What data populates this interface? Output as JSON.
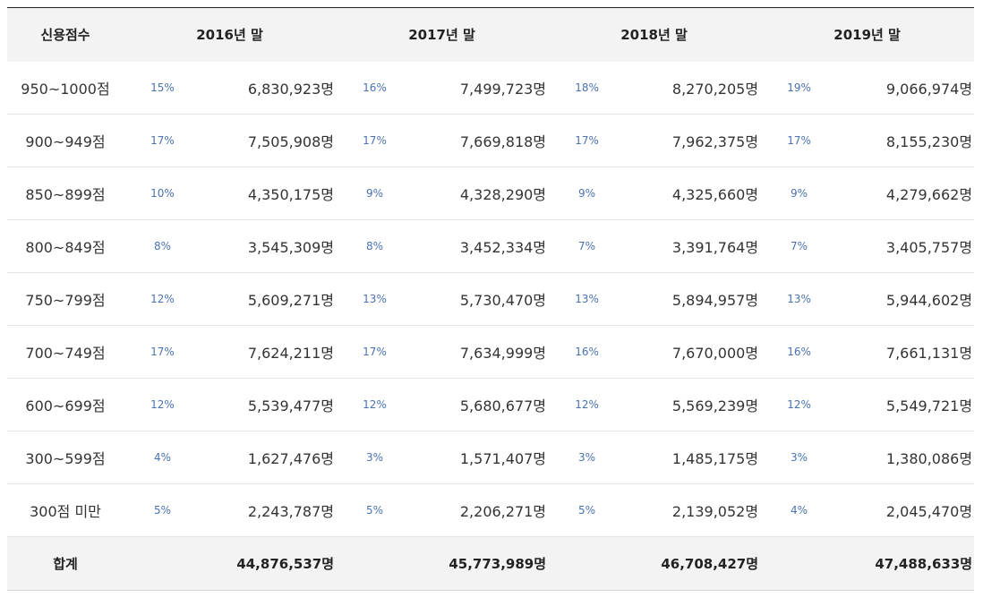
{
  "table": {
    "headers": [
      "신용점수",
      "2016년 말",
      "2017년 말",
      "2018년 말",
      "2019년 말"
    ],
    "rows": [
      {
        "label": "950~1000점",
        "cells": [
          {
            "pct": "15%",
            "count": "6,830,923명"
          },
          {
            "pct": "16%",
            "count": "7,499,723명"
          },
          {
            "pct": "18%",
            "count": "8,270,205명"
          },
          {
            "pct": "19%",
            "count": "9,066,974명"
          }
        ]
      },
      {
        "label": "900~949점",
        "cells": [
          {
            "pct": "17%",
            "count": "7,505,908명"
          },
          {
            "pct": "17%",
            "count": "7,669,818명"
          },
          {
            "pct": "17%",
            "count": "7,962,375명"
          },
          {
            "pct": "17%",
            "count": "8,155,230명"
          }
        ]
      },
      {
        "label": "850~899점",
        "cells": [
          {
            "pct": "10%",
            "count": "4,350,175명"
          },
          {
            "pct": "9%",
            "count": "4,328,290명"
          },
          {
            "pct": "9%",
            "count": "4,325,660명"
          },
          {
            "pct": "9%",
            "count": "4,279,662명"
          }
        ]
      },
      {
        "label": "800~849점",
        "cells": [
          {
            "pct": "8%",
            "count": "3,545,309명"
          },
          {
            "pct": "8%",
            "count": "3,452,334명"
          },
          {
            "pct": "7%",
            "count": "3,391,764명"
          },
          {
            "pct": "7%",
            "count": "3,405,757명"
          }
        ]
      },
      {
        "label": "750~799점",
        "cells": [
          {
            "pct": "12%",
            "count": "5,609,271명"
          },
          {
            "pct": "13%",
            "count": "5,730,470명"
          },
          {
            "pct": "13%",
            "count": "5,894,957명"
          },
          {
            "pct": "13%",
            "count": "5,944,602명"
          }
        ]
      },
      {
        "label": "700~749점",
        "cells": [
          {
            "pct": "17%",
            "count": "7,624,211명"
          },
          {
            "pct": "17%",
            "count": "7,634,999명"
          },
          {
            "pct": "16%",
            "count": "7,670,000명"
          },
          {
            "pct": "16%",
            "count": "7,661,131명"
          }
        ]
      },
      {
        "label": "600~699점",
        "cells": [
          {
            "pct": "12%",
            "count": "5,539,477명"
          },
          {
            "pct": "12%",
            "count": "5,680,677명"
          },
          {
            "pct": "12%",
            "count": "5,569,239명"
          },
          {
            "pct": "12%",
            "count": "5,549,721명"
          }
        ]
      },
      {
        "label": "300~599점",
        "cells": [
          {
            "pct": "4%",
            "count": "1,627,476명"
          },
          {
            "pct": "3%",
            "count": "1,571,407명"
          },
          {
            "pct": "3%",
            "count": "1,485,175명"
          },
          {
            "pct": "3%",
            "count": "1,380,086명"
          }
        ]
      },
      {
        "label": "300점 미만",
        "cells": [
          {
            "pct": "5%",
            "count": "2,243,787명"
          },
          {
            "pct": "5%",
            "count": "2,206,271명"
          },
          {
            "pct": "5%",
            "count": "2,139,052명"
          },
          {
            "pct": "4%",
            "count": "2,045,470명"
          }
        ]
      }
    ],
    "total": {
      "label": "합계",
      "counts": [
        "44,876,537명",
        "45,773,989명",
        "46,708,427명",
        "47,488,633명"
      ]
    }
  },
  "colors": {
    "header_bg": "#f3f3f3",
    "percent_text": "#4a72b2",
    "top_border": "#222222"
  }
}
